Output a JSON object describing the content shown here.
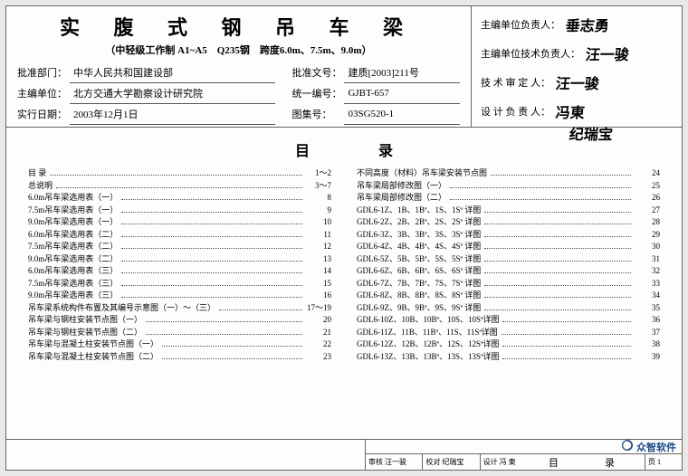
{
  "title": "实 腹 式 钢 吊 车 梁",
  "subtitle": "（中轻级工作制 A1~A5　Q235钢　跨度6.0m、7.5m、9.0m）",
  "info": {
    "approving_dept_lbl": "批准部门：",
    "approving_dept": "中华人民共和国建设部",
    "approval_doc_lbl": "批准文号：",
    "approval_doc": "建质[2003]211号",
    "main_org_lbl": "主编单位：",
    "main_org": "北方交通大学勘察设计研究院",
    "unified_no_lbl": "统一编号：",
    "unified_no": "GJBT-657",
    "effective_date_lbl": "实行日期：",
    "effective_date": "2003年12月1日",
    "atlas_no_lbl": "图集号：",
    "atlas_no": "03SG520-1"
  },
  "signatures": {
    "r1_lbl": "主编单位负责人：",
    "r1_val": "垂志勇",
    "r2_lbl": "主编单位技术负责人：",
    "r2_val": "汪一骏",
    "r3_lbl": "技 术 审 定 人：",
    "r3_val": "汪一骏",
    "r4_lbl": "设 计 负 责 人：",
    "r4_val": "冯東",
    "r5_val": "纪瑞宝"
  },
  "toc_heading": "目　录",
  "toc_left": [
    {
      "n": "目 录",
      "p": "1～2"
    },
    {
      "n": "总说明",
      "p": "3～7"
    },
    {
      "n": "6.0m吊车梁选用表（一）",
      "p": "8"
    },
    {
      "n": "7.5m吊车梁选用表（一）",
      "p": "9"
    },
    {
      "n": "9.0m吊车梁选用表（一）",
      "p": "10"
    },
    {
      "n": "6.0m吊车梁选用表（二）",
      "p": "11"
    },
    {
      "n": "7.5m吊车梁选用表（二）",
      "p": "12"
    },
    {
      "n": "9.0m吊车梁选用表（二）",
      "p": "13"
    },
    {
      "n": "6.0m吊车梁选用表（三）",
      "p": "14"
    },
    {
      "n": "7.5m吊车梁选用表（三）",
      "p": "15"
    },
    {
      "n": "9.0m吊车梁选用表（三）",
      "p": "16"
    },
    {
      "n": "吊车梁系统构件布置及其编号示意图（一）～（三）",
      "p": "17～19"
    },
    {
      "n": "吊车梁与钢柱安装节点图（一）",
      "p": "20"
    },
    {
      "n": "吊车梁与钢柱安装节点图（二）",
      "p": "21"
    },
    {
      "n": "吊车梁与混凝土柱安装节点图（一）",
      "p": "22"
    },
    {
      "n": "吊车梁与混凝土柱安装节点图（二）",
      "p": "23"
    }
  ],
  "toc_right": [
    {
      "n": "不同高度（材料）吊车梁安装节点图",
      "p": "24"
    },
    {
      "n": "吊车梁局部修改图（一）",
      "p": "25"
    },
    {
      "n": "吊车梁局部修改图（二）",
      "p": "26"
    },
    {
      "n": "GDL6-1Z、1B、1Bª、1S、1Sª 详图",
      "p": "27"
    },
    {
      "n": "GDL6-2Z、2B、2Bª、2S、2Sª 详图",
      "p": "28"
    },
    {
      "n": "GDL6-3Z、3B、3Bª、3S、3Sª 详图",
      "p": "29"
    },
    {
      "n": "GDL6-4Z、4B、4Bª、4S、4Sª 详图",
      "p": "30"
    },
    {
      "n": "GDL6-5Z、5B、5Bª、5S、5Sª 详图",
      "p": "31"
    },
    {
      "n": "GDL6-6Z、6B、6Bª、6S、6Sª 详图",
      "p": "32"
    },
    {
      "n": "GDL6-7Z、7B、7Bª、7S、7Sª 详图",
      "p": "33"
    },
    {
      "n": "GDL6-8Z、8B、8Bª、8S、8Sª 详图",
      "p": "34"
    },
    {
      "n": "GDL6-9Z、9B、9Bª、9S、9Sª 详图",
      "p": "35"
    },
    {
      "n": "GDL6-10Z、10B、10Bª、10S、10Sª详图",
      "p": "36"
    },
    {
      "n": "GDL6-11Z、11B、11Bª、11S、11Sª详图",
      "p": "37"
    },
    {
      "n": "GDL6-12Z、12B、12Bª、12S、12Sª详图",
      "p": "38"
    },
    {
      "n": "GDL6-13Z、13B、13Bª、13S、13Sª详图",
      "p": "39"
    }
  ],
  "footer": {
    "brand": "众智软件",
    "brand_sub": "ZHONZHI SOFTWARE",
    "c1_lbl": "审核",
    "c1_val": "汪一骏",
    "c2_lbl": "校对",
    "c2_val": "纪瑞宝",
    "c3_lbl": "设计",
    "c3_val": "冯 東",
    "c4_lbl": "页",
    "c4_val": "1",
    "toc_title": "目　录"
  }
}
